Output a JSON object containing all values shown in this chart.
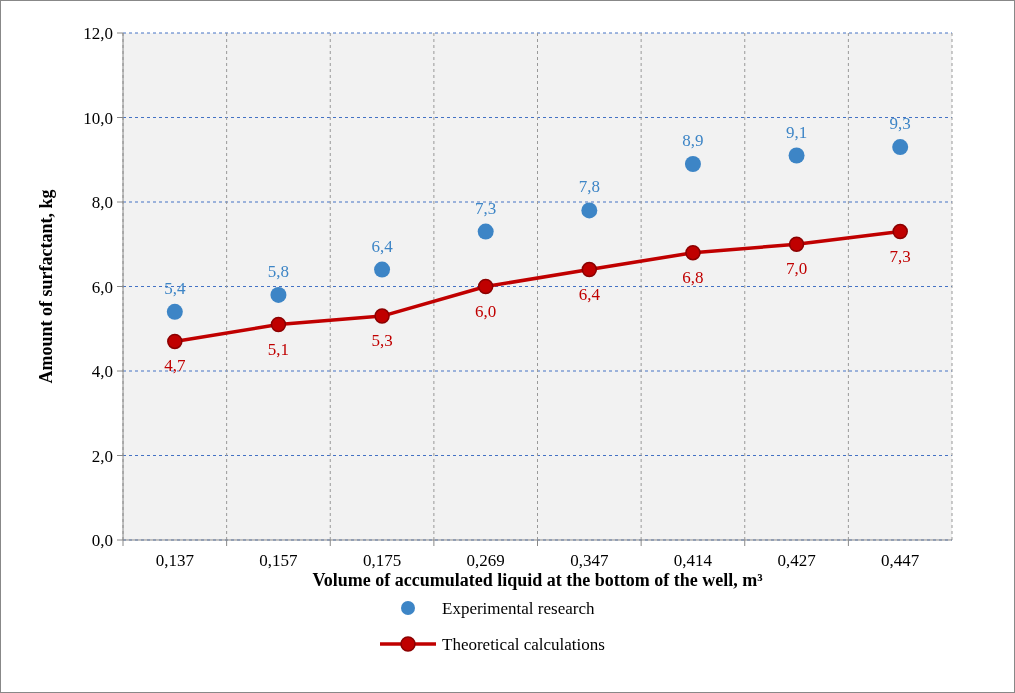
{
  "chart_data": {
    "type": "scatter",
    "xlabel": "Volume of accumulated liquid  at the bottom of the well, m³",
    "ylabel": "Amount of surfactant, kg",
    "categories": [
      "0,137",
      "0,157",
      "0,175",
      "0,269",
      "0,347",
      "0,414",
      "0,427",
      "0,447"
    ],
    "series": [
      {
        "name": "Experimental research",
        "color": "#3d85c6",
        "values": [
          5.4,
          5.8,
          6.4,
          7.3,
          7.8,
          8.9,
          9.1,
          9.3
        ],
        "value_labels": [
          "5,4",
          "5,8",
          "6,4",
          "7,3",
          "7,8",
          "8,9",
          "9,1",
          "9,3"
        ]
      },
      {
        "name": "Theoretical calculations",
        "type": "line",
        "color": "#c00000",
        "values": [
          4.7,
          5.1,
          5.3,
          6.0,
          6.4,
          6.8,
          7.0,
          7.3
        ],
        "value_labels": [
          "4,7",
          "5,1",
          "5,3",
          "6,0",
          "6,4",
          "6,8",
          "7,0",
          "7,3"
        ]
      }
    ],
    "ylim": [
      0,
      12
    ],
    "yticks": [
      {
        "value": 0,
        "label": "0,0"
      },
      {
        "value": 2,
        "label": "2,0"
      },
      {
        "value": 4,
        "label": "4,0"
      },
      {
        "value": 6,
        "label": "6,0"
      },
      {
        "value": 8,
        "label": "8,0"
      },
      {
        "value": 10,
        "label": "10,0"
      },
      {
        "value": 12,
        "label": "12,0"
      }
    ],
    "grid": true,
    "legend": "bottom",
    "marker": "circle"
  }
}
